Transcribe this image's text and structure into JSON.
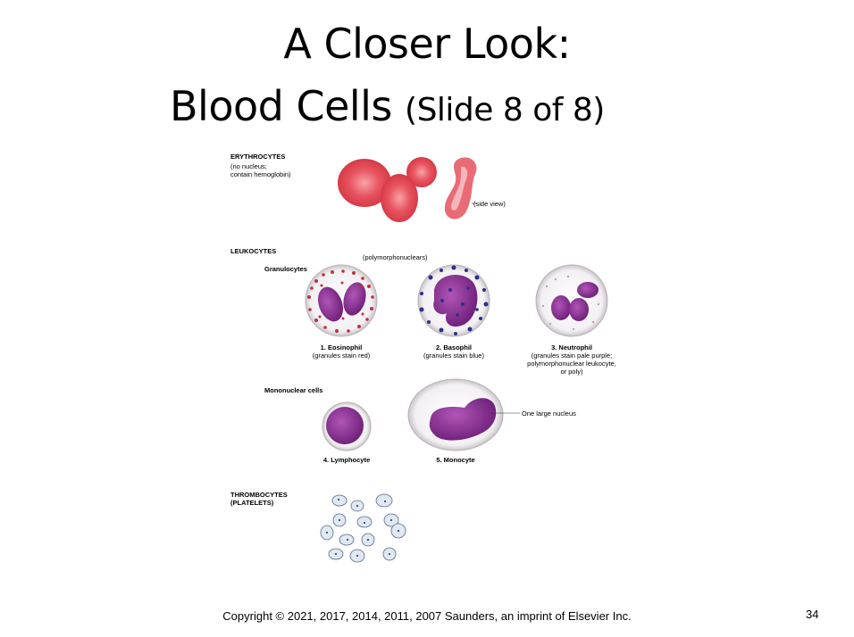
{
  "slide": {
    "title_line1": "A Closer Look:",
    "title_line2_main": "Blood Cells",
    "title_line2_sub": "(Slide 8 of 8)",
    "copyright": "Copyright ©  2021, 2017, 2014, 2011, 2007 Saunders, an imprint of Elsevier Inc.",
    "page_number": "34"
  },
  "figure": {
    "erythrocytes": {
      "heading": "ERYTHROCYTES",
      "note_line1": "(no nucleus;",
      "note_line2": "contain hemoglobin)",
      "side_view": "(side view)"
    },
    "leukocytes": {
      "heading": "LEUKOCYTES",
      "polymorphonuclears": "(polymorphonuclears)",
      "granulocytes": "Granulocytes",
      "eosinophil_name": "1. Eosinophil",
      "eosinophil_note": "(granules stain red)",
      "basophil_name": "2. Basophil",
      "basophil_note": "(granules stain blue)",
      "neutrophil_name": "3. Neutrophil",
      "neutrophil_note1": "(granules stain pale purple;",
      "neutrophil_note2": "polymorphonuclear leukocyte,",
      "neutrophil_note3": "or poly)",
      "mononuclear": "Mononuclear cells",
      "lymphocyte_name": "4. Lymphocyte",
      "monocyte_name": "5. Monocyte",
      "nucleus_label": "One large nucleus"
    },
    "thrombocytes": {
      "heading_line1": "THROMBOCYTES",
      "heading_line2": "(PLATELETS)"
    }
  }
}
